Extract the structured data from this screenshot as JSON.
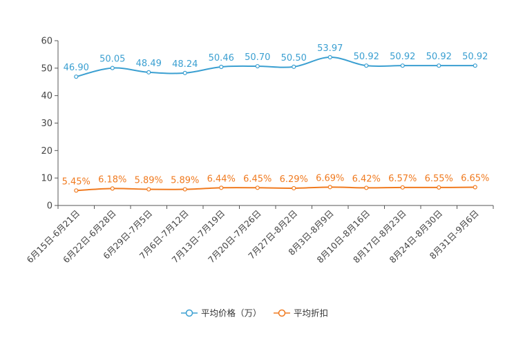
{
  "chart_data": {
    "type": "line",
    "categories": [
      "6月15日-6月21日",
      "6月22日-6月28日",
      "6月29日-7月5日",
      "7月6日-7月12日",
      "7月13日-7月19日",
      "7月20日-7月26日",
      "7月27日-8月2日",
      "8月3日-8月9日",
      "8月10日-8月16日",
      "8月17日-8月23日",
      "8月24日-8月30日",
      "8月31日-9月6日"
    ],
    "series": [
      {
        "name": "平均价格（万）",
        "color": "#3a9fd1",
        "values": [
          46.9,
          50.05,
          48.49,
          48.24,
          50.46,
          50.7,
          50.5,
          53.97,
          50.92,
          50.92,
          50.92,
          50.92
        ],
        "labels": [
          "46.90",
          "50.05",
          "48.49",
          "48.24",
          "50.46",
          "50.70",
          "50.50",
          "53.97",
          "50.92",
          "50.92",
          "50.92",
          "50.92"
        ]
      },
      {
        "name": "平均折扣",
        "color": "#f07a1f",
        "values": [
          5.45,
          6.18,
          5.89,
          5.89,
          6.44,
          6.45,
          6.29,
          6.69,
          6.42,
          6.57,
          6.55,
          6.65
        ],
        "labels": [
          "5.45%",
          "6.18%",
          "5.89%",
          "5.89%",
          "6.44%",
          "6.45%",
          "6.29%",
          "6.69%",
          "6.42%",
          "6.57%",
          "6.55%",
          "6.65%"
        ]
      }
    ],
    "ylim": [
      0,
      60
    ],
    "yticks": [
      "0",
      "10",
      "20",
      "30",
      "40",
      "50",
      "60"
    ],
    "grid": false,
    "legend": "bottom-center"
  }
}
